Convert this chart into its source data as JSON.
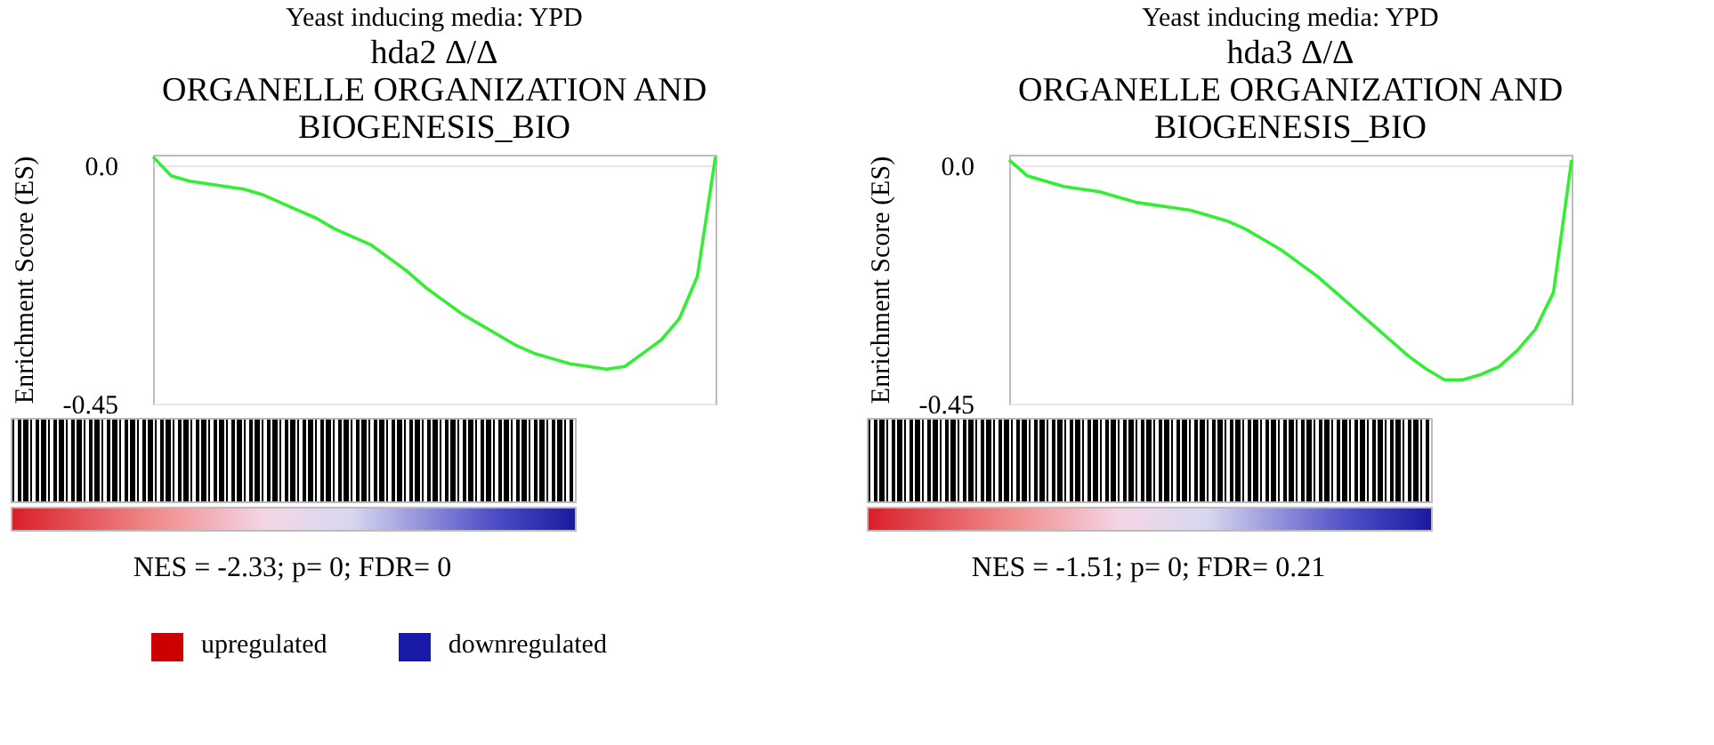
{
  "chart_data": [
    {
      "type": "line",
      "title": "Yeast inducing media: YPD",
      "subtitle": "hda2 Δ/Δ\nORGANELLE ORGANIZATION AND\nBIOGENESIS_BIO",
      "ylabel": "Enrichment  Score (ES)",
      "categories": [
        null,
        null,
        null,
        null,
        null,
        null,
        null,
        null,
        null,
        null,
        null,
        null,
        null,
        null,
        null,
        null,
        null,
        null,
        null,
        null,
        null,
        null,
        null,
        null,
        null,
        null,
        null,
        null,
        null,
        null,
        null,
        null
      ],
      "series": [
        {
          "color": "#33ee33",
          "values": [
            0.016,
            -0.02,
            -0.03,
            -0.035,
            -0.04,
            -0.045,
            -0.055,
            -0.07,
            -0.085,
            -0.1,
            -0.12,
            -0.135,
            -0.15,
            -0.175,
            -0.2,
            -0.23,
            -0.255,
            -0.28,
            -0.3,
            -0.32,
            -0.34,
            -0.355,
            -0.365,
            -0.375,
            -0.38,
            -0.385,
            -0.38,
            -0.355,
            -0.33,
            -0.29,
            -0.21,
            0.016
          ]
        }
      ],
      "ylim": [
        -0.45,
        0.02
      ],
      "yticks": [
        {
          "value": 0,
          "label": "0.0"
        },
        -0.45
      ],
      "tick_labels": "y",
      "grid": "y",
      "marker": "none",
      "annotations": [
        "NES =  -2.33; p= 0; FDR= 0",
        "upregulated",
        "downregulated"
      ]
    },
    {
      "type": "line",
      "title": "Yeast inducing media: YPD",
      "subtitle": "hda3 Δ/Δ\nORGANELLE ORGANIZATION AND\nBIOGENESIS_BIO",
      "ylabel": "Enrichment  Score (ES)",
      "categories": [
        null,
        null,
        null,
        null,
        null,
        null,
        null,
        null,
        null,
        null,
        null,
        null,
        null,
        null,
        null,
        null,
        null,
        null,
        null,
        null,
        null,
        null,
        null,
        null,
        null,
        null,
        null,
        null,
        null,
        null,
        null,
        null
      ],
      "series": [
        {
          "color": "#33ee33",
          "values": [
            0.01,
            -0.02,
            -0.03,
            -0.04,
            -0.045,
            -0.05,
            -0.06,
            -0.07,
            -0.075,
            -0.08,
            -0.085,
            -0.095,
            -0.105,
            -0.12,
            -0.14,
            -0.16,
            -0.185,
            -0.21,
            -0.24,
            -0.27,
            -0.3,
            -0.33,
            -0.36,
            -0.385,
            -0.405,
            -0.405,
            -0.395,
            -0.38,
            -0.35,
            -0.31,
            -0.24,
            0.01
          ]
        }
      ],
      "ylim": [
        -0.45,
        0.02
      ],
      "yticks": [
        {
          "value": 0,
          "label": "0.0"
        },
        -0.45
      ],
      "tick_labels": "y",
      "grid": "y",
      "marker": "none",
      "annotations": [
        "NES = -1.51; p= 0; FDR= 0.21"
      ]
    }
  ]
}
